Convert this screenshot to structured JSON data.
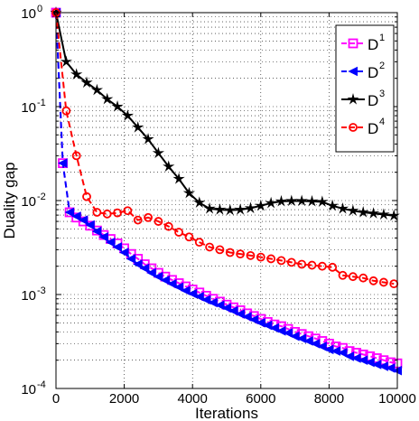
{
  "chart_data": {
    "type": "line",
    "title": "",
    "xlabel": "Iterations",
    "ylabel": "Duality gap",
    "xlim": [
      0,
      10000
    ],
    "ylim": [
      0.0001,
      1
    ],
    "yscale": "log",
    "grid": true,
    "legend_position": "top-right",
    "x_ticks": [
      0,
      2000,
      4000,
      6000,
      8000,
      10000
    ],
    "x_tick_labels": [
      "0",
      "2000",
      "4000",
      "6000",
      "8000",
      "10000"
    ],
    "y_ticks": [
      1,
      0.1,
      0.01,
      0.001,
      0.0001
    ],
    "y_tick_bases": [
      "10",
      "10",
      "10",
      "10",
      "10"
    ],
    "y_tick_exps": [
      "0",
      "-1",
      "-2",
      "-3",
      "-4"
    ],
    "series": [
      {
        "name": "D",
        "sup": "1",
        "color": "#ff00ff",
        "marker": "square",
        "dash": true,
        "line_width": 2,
        "x": [
          0,
          200,
          400,
          600,
          800,
          1000,
          1200,
          1400,
          1600,
          1800,
          2000,
          2200,
          2400,
          2600,
          2800,
          3000,
          3200,
          3400,
          3600,
          3800,
          4000,
          4200,
          4400,
          4600,
          4800,
          5000,
          5200,
          5400,
          5600,
          5800,
          6000,
          6200,
          6400,
          6600,
          6800,
          7000,
          7200,
          7400,
          7600,
          7800,
          8000,
          8200,
          8400,
          8600,
          8800,
          9000,
          9200,
          9400,
          9600,
          9800,
          10000
        ],
        "y": [
          1,
          0.025,
          0.0075,
          0.0066,
          0.006,
          0.0054,
          0.0048,
          0.0043,
          0.0039,
          0.0035,
          0.0031,
          0.0027,
          0.0024,
          0.0021,
          0.0019,
          0.0017,
          0.00155,
          0.00143,
          0.00132,
          0.00122,
          0.00113,
          0.00105,
          0.00097,
          0.0009,
          0.00084,
          0.00078,
          0.00073,
          0.00068,
          0.00063,
          0.00059,
          0.00055,
          0.00051,
          0.00048,
          0.00046,
          0.00043,
          0.0004,
          0.00038,
          0.00036,
          0.00034,
          0.00032,
          0.0003,
          0.00028,
          0.00027,
          0.00025,
          0.00024,
          0.00023,
          0.00022,
          0.00021,
          0.0002,
          0.00019,
          0.000185
        ]
      },
      {
        "name": "D",
        "sup": "2",
        "color": "#0000ff",
        "marker": "triangle-left",
        "dash": true,
        "line_width": 2,
        "x": [
          0,
          200,
          400,
          600,
          800,
          1000,
          1200,
          1400,
          1600,
          1800,
          2000,
          2200,
          2400,
          2600,
          2800,
          3000,
          3200,
          3400,
          3600,
          3800,
          4000,
          4200,
          4400,
          4600,
          4800,
          5000,
          5200,
          5400,
          5600,
          5800,
          6000,
          6200,
          6400,
          6600,
          6800,
          7000,
          7200,
          7400,
          7600,
          7800,
          8000,
          8200,
          8400,
          8600,
          8800,
          9000,
          9200,
          9400,
          9600,
          9800,
          10000
        ],
        "y": [
          1,
          0.025,
          0.0075,
          0.0068,
          0.0062,
          0.0055,
          0.0047,
          0.0041,
          0.0036,
          0.0032,
          0.0028,
          0.0024,
          0.0021,
          0.0019,
          0.0017,
          0.00155,
          0.00142,
          0.0013,
          0.0012,
          0.0011,
          0.00102,
          0.00095,
          0.00088,
          0.00082,
          0.00077,
          0.00072,
          0.00067,
          0.00062,
          0.00058,
          0.00054,
          0.0005,
          0.00047,
          0.00044,
          0.00041,
          0.00039,
          0.00036,
          0.00034,
          0.00032,
          0.0003,
          0.00028,
          0.00026,
          0.00025,
          0.00024,
          0.00022,
          0.00021,
          0.0002,
          0.00019,
          0.00018,
          0.000172,
          0.000165,
          0.000155
        ]
      },
      {
        "name": "D",
        "sup": "3",
        "color": "#000000",
        "marker": "star",
        "dash": false,
        "line_width": 2,
        "x": [
          0,
          300,
          600,
          900,
          1200,
          1500,
          1800,
          2100,
          2400,
          2700,
          3000,
          3300,
          3600,
          3900,
          4200,
          4500,
          4800,
          5100,
          5400,
          5700,
          6000,
          6300,
          6600,
          6900,
          7200,
          7500,
          7800,
          8100,
          8400,
          8700,
          9000,
          9300,
          9600,
          9900
        ],
        "y": [
          1,
          0.3,
          0.22,
          0.18,
          0.15,
          0.12,
          0.1,
          0.08,
          0.06,
          0.045,
          0.032,
          0.023,
          0.017,
          0.012,
          0.0095,
          0.0082,
          0.008,
          0.0079,
          0.008,
          0.0083,
          0.0088,
          0.0094,
          0.0098,
          0.0099,
          0.0099,
          0.0098,
          0.0097,
          0.0088,
          0.0082,
          0.0078,
          0.0075,
          0.0073,
          0.0071,
          0.0069
        ]
      },
      {
        "name": "D",
        "sup": "4",
        "color": "#ff0000",
        "marker": "circle",
        "dash": true,
        "line_width": 2,
        "x": [
          0,
          300,
          600,
          900,
          1200,
          1500,
          1800,
          2100,
          2400,
          2700,
          3000,
          3300,
          3600,
          3900,
          4200,
          4500,
          4800,
          5100,
          5400,
          5700,
          6000,
          6300,
          6600,
          6900,
          7200,
          7500,
          7800,
          8100,
          8400,
          8700,
          9000,
          9300,
          9600,
          9900
        ],
        "y": [
          1,
          0.09,
          0.03,
          0.011,
          0.0075,
          0.0072,
          0.0074,
          0.0078,
          0.0062,
          0.0066,
          0.006,
          0.0053,
          0.0046,
          0.0041,
          0.0036,
          0.0032,
          0.003,
          0.0028,
          0.0027,
          0.0026,
          0.0025,
          0.0024,
          0.0023,
          0.0022,
          0.0021,
          0.00205,
          0.002,
          0.00195,
          0.0016,
          0.00155,
          0.0015,
          0.0014,
          0.00135,
          0.0013
        ]
      }
    ]
  }
}
